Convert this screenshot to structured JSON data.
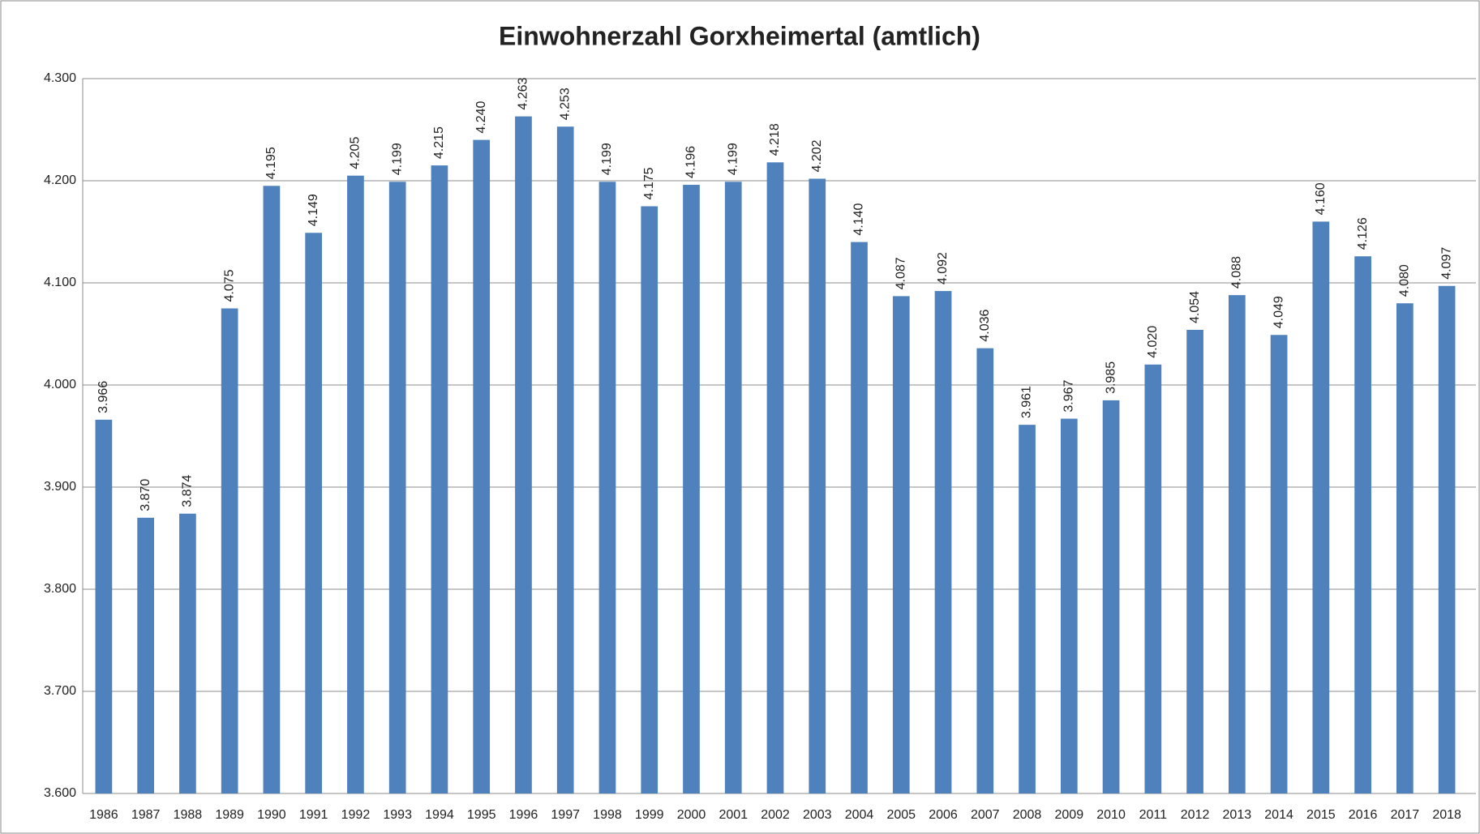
{
  "chart_data": {
    "type": "bar",
    "title": "Einwohnerzahl Gorxheimertal (amtlich)",
    "categories": [
      "1986",
      "1987",
      "1988",
      "1989",
      "1990",
      "1991",
      "1992",
      "1993",
      "1994",
      "1995",
      "1996",
      "1997",
      "1998",
      "1999",
      "2000",
      "2001",
      "2002",
      "2003",
      "2004",
      "2005",
      "2006",
      "2007",
      "2008",
      "2009",
      "2010",
      "2011",
      "2012",
      "2013",
      "2014",
      "2015",
      "2016",
      "2017",
      "2018"
    ],
    "values": [
      3966,
      3870,
      3874,
      4075,
      4195,
      4149,
      4205,
      4199,
      4215,
      4240,
      4263,
      4253,
      4199,
      4175,
      4196,
      4199,
      4218,
      4202,
      4140,
      4087,
      4092,
      4036,
      3961,
      3967,
      3985,
      4020,
      4054,
      4088,
      4049,
      4160,
      4126,
      4080,
      4097
    ],
    "value_labels": [
      "3.966",
      "3.870",
      "3.874",
      "4.075",
      "4.195",
      "4.149",
      "4.205",
      "4.199",
      "4.215",
      "4.240",
      "4.263",
      "4.253",
      "4.199",
      "4.175",
      "4.196",
      "4.199",
      "4.218",
      "4.202",
      "4.140",
      "4.087",
      "4.092",
      "4.036",
      "3.961",
      "3.967",
      "3.985",
      "4.020",
      "4.054",
      "4.088",
      "4.049",
      "4.160",
      "4.126",
      "4.080",
      "4.097"
    ],
    "color": "#4f81bd",
    "ylim": [
      3600,
      4300
    ],
    "yticks": [
      {
        "value": 3600,
        "label": "3.600"
      },
      {
        "value": 3700,
        "label": "3.700"
      },
      {
        "value": 3800,
        "label": "3.800"
      },
      {
        "value": 3900,
        "label": "3.900"
      },
      {
        "value": 4000,
        "label": "4.000"
      },
      {
        "value": 4100,
        "label": "4.100"
      },
      {
        "value": 4200,
        "label": "4.200"
      },
      {
        "value": 4300,
        "label": "4.300"
      }
    ],
    "grid": true
  }
}
